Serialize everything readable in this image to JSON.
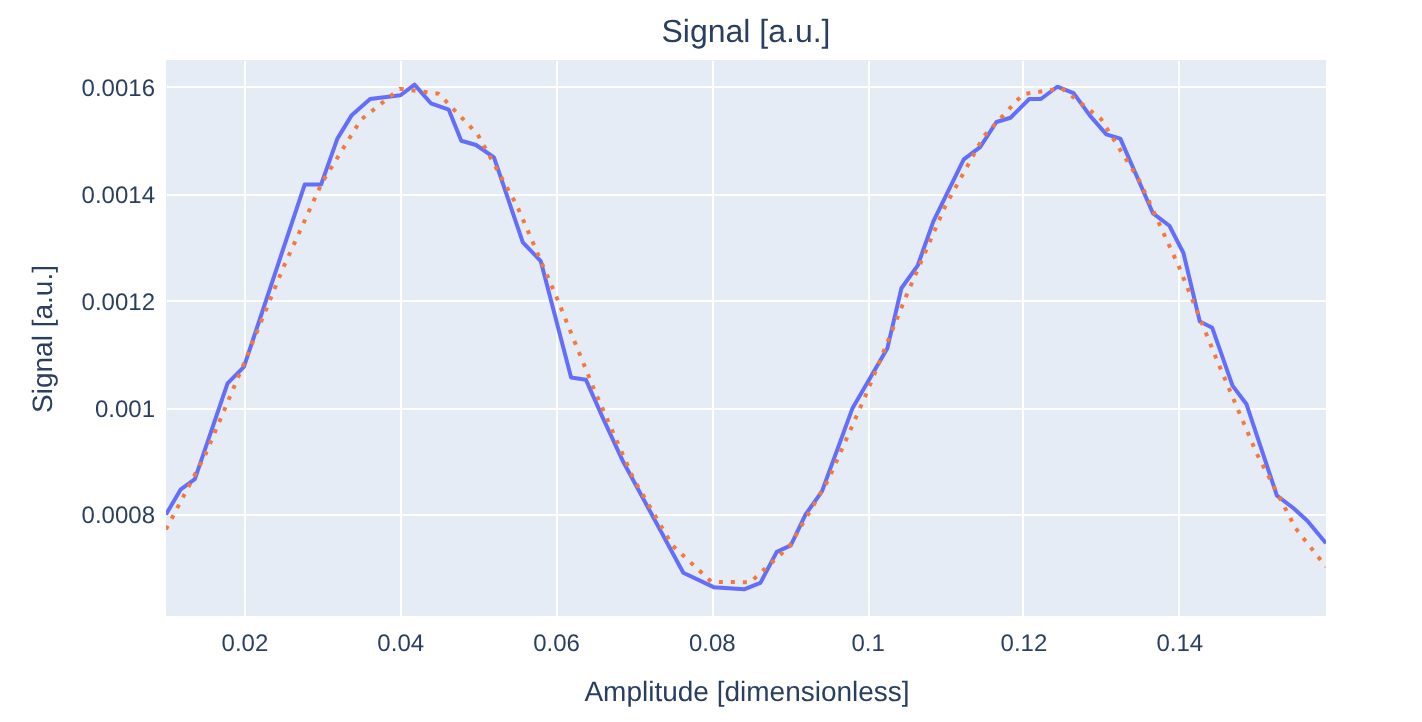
{
  "chart_data": {
    "type": "line",
    "title": "Signal [a.u.]",
    "xlabel": "Amplitude [dimensionless]",
    "ylabel": "Signal [a.u.]",
    "xlim": [
      0.01,
      0.1589
    ],
    "ylim": [
      0.00061,
      0.00165
    ],
    "xticks": [
      0.02,
      0.04,
      0.06,
      0.08,
      0.1,
      0.12,
      0.14
    ],
    "yticks": [
      0.0008,
      0.001,
      0.0012,
      0.0014,
      0.0016
    ],
    "grid": true,
    "marker": "none",
    "series": [
      {
        "color": "#636efa",
        "line_style": "solid",
        "x": [
          0.01,
          0.0119,
          0.0137,
          0.0179,
          0.02,
          0.0278,
          0.0299,
          0.032,
          0.0338,
          0.0362,
          0.0401,
          0.0419,
          0.044,
          0.0463,
          0.0479,
          0.0498,
          0.0521,
          0.0558,
          0.0581,
          0.062,
          0.0639,
          0.066,
          0.0686,
          0.0764,
          0.0803,
          0.0842,
          0.0863,
          0.0884,
          0.0902,
          0.0921,
          0.0942,
          0.0981,
          0.1026,
          0.1044,
          0.1065,
          0.1085,
          0.1124,
          0.1145,
          0.1166,
          0.1184,
          0.1208,
          0.1223,
          0.1244,
          0.1265,
          0.1286,
          0.1307,
          0.1325,
          0.1367,
          0.1388,
          0.1406,
          0.1427,
          0.1443,
          0.1469,
          0.1487,
          0.1526,
          0.1547,
          0.1565,
          0.1589
        ],
        "values": [
          0.0008,
          0.000847,
          0.000866,
          0.001045,
          0.001076,
          0.001417,
          0.001417,
          0.001503,
          0.001546,
          0.001577,
          0.001584,
          0.001604,
          0.001569,
          0.001557,
          0.001499,
          0.001491,
          0.001468,
          0.001309,
          0.001274,
          0.001056,
          0.001052,
          0.000983,
          0.000901,
          0.000691,
          0.000664,
          0.00066,
          0.000672,
          0.00073,
          0.000742,
          0.0008,
          0.000843,
          0.000998,
          0.001111,
          0.001223,
          0.001266,
          0.001348,
          0.001464,
          0.001487,
          0.001534,
          0.001542,
          0.001577,
          0.001577,
          0.0016,
          0.001588,
          0.001546,
          0.001511,
          0.001503,
          0.001363,
          0.00134,
          0.001289,
          0.001161,
          0.001149,
          0.001041,
          0.001006,
          0.000835,
          0.000812,
          0.000788,
          0.000746
        ]
      },
      {
        "color": "#f5793a",
        "line_style": "dotted",
        "x": [
          0.01,
          0.015,
          0.02,
          0.025,
          0.03,
          0.035,
          0.04,
          0.045,
          0.05,
          0.055,
          0.06,
          0.065,
          0.07,
          0.075,
          0.08,
          0.085,
          0.09,
          0.095,
          0.1,
          0.105,
          0.11,
          0.115,
          0.12,
          0.125,
          0.13,
          0.135,
          0.14,
          0.145,
          0.15,
          0.155,
          0.1589
        ],
        "values": [
          0.000772,
          0.00091,
          0.001082,
          0.00126,
          0.00142,
          0.001538,
          0.001596,
          0.001587,
          0.001511,
          0.001379,
          0.001211,
          0.001032,
          0.000867,
          0.000742,
          0.000674,
          0.000673,
          0.00074,
          0.000864,
          0.001029,
          0.001208,
          0.001376,
          0.001508,
          0.001586,
          0.001597,
          0.00154,
          0.001423,
          0.001264,
          0.001085,
          0.000914,
          0.000774,
          0.000702
        ]
      }
    ]
  }
}
